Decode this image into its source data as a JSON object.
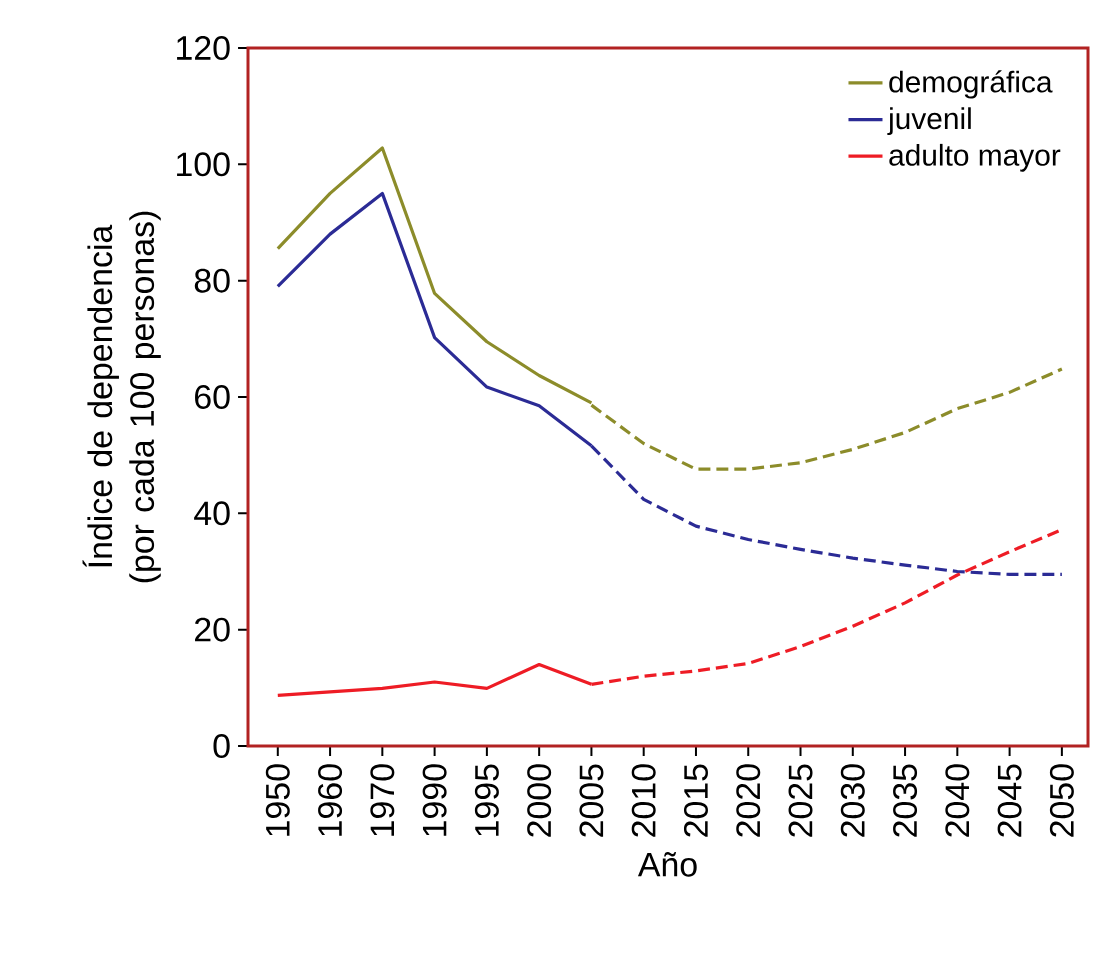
{
  "chart_data": {
    "type": "line",
    "xlabel": "Año",
    "ylabel": "Índice de dependencia (por cada 100 personas)",
    "categories": [
      "1950",
      "1960",
      "1970",
      "1990",
      "1995",
      "2000",
      "2005",
      "2010",
      "2015",
      "2020",
      "2025",
      "2030",
      "2035",
      "2040",
      "2045",
      "2050"
    ],
    "ylim": [
      0,
      120
    ],
    "yticks": [
      0,
      20,
      40,
      60,
      80,
      100,
      120
    ],
    "grid": false,
    "legend": "top right",
    "marker": "none",
    "series": [
      {
        "name": "demográfica",
        "color": "#8c8c2a",
        "line_style": "solid",
        "values": [
          85.5,
          95,
          102.8,
          77.8,
          69.5,
          63.7,
          59,
          null,
          null,
          null,
          null,
          null,
          null,
          null,
          null,
          null
        ]
      },
      {
        "name": "juvenil",
        "color": "#2b2b95",
        "line_style": "solid",
        "values": [
          79,
          88,
          95,
          70.2,
          61.7,
          58.5,
          51.6,
          null,
          null,
          null,
          null,
          null,
          null,
          null,
          null,
          null
        ]
      },
      {
        "name": "adulto mayor",
        "color": "#ee1c25",
        "line_style": "solid",
        "values": [
          8.7,
          9.3,
          9.9,
          11,
          9.9,
          14,
          10.6,
          null,
          null,
          null,
          null,
          null,
          null,
          null,
          null,
          null
        ]
      },
      {
        "color": "#8c8c2a",
        "line_style": "dashed",
        "values": [
          null,
          null,
          null,
          null,
          null,
          null,
          58.6,
          52,
          47.6,
          47.6,
          48.7,
          51,
          53.9,
          58,
          60.8,
          64.8
        ]
      },
      {
        "color": "#2b2b95",
        "line_style": "dashed",
        "values": [
          null,
          null,
          null,
          null,
          null,
          null,
          51.6,
          42.4,
          37.8,
          35.5,
          33.8,
          32.3,
          31.1,
          30,
          29.5,
          29.5
        ]
      },
      {
        "color": "#ee1c25",
        "line_style": "dashed",
        "values": [
          null,
          null,
          null,
          null,
          null,
          null,
          10.6,
          12,
          12.9,
          14.2,
          17.1,
          20.6,
          24.6,
          29.4,
          33.4,
          37.2
        ]
      }
    ]
  }
}
